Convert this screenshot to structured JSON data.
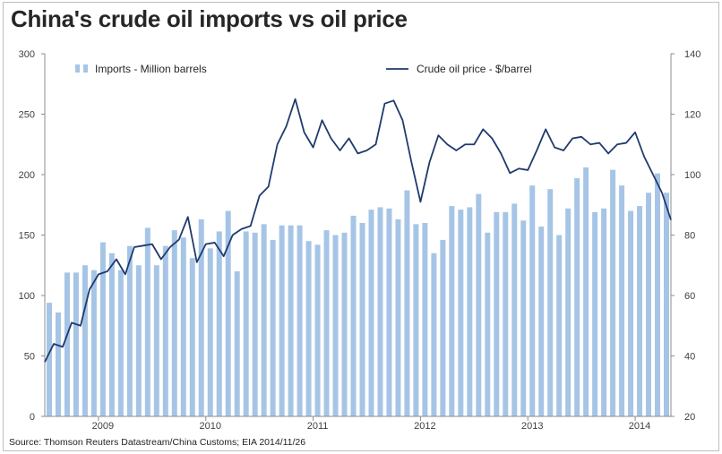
{
  "title": "China's crude oil imports vs oil price",
  "source": "Source: Thomson Reuters Datastream/China Customs; EIA 2014/11/26",
  "colors": {
    "bars": "#a6c5e6",
    "line": "#1f3a6e",
    "axis": "#8c8c8c",
    "text": "#262626"
  },
  "chart_data": {
    "type": "bar",
    "title": "China's crude oil imports vs oil price",
    "grid": false,
    "legend_position": "top",
    "left_axis": {
      "ylim": [
        0,
        300
      ],
      "ticks": [
        "0",
        "50",
        "100",
        "150",
        "200",
        "250",
        "300"
      ]
    },
    "right_axis": {
      "ylim": [
        20,
        140
      ],
      "ticks": [
        "20",
        "40",
        "60",
        "80",
        "100",
        "120",
        "140"
      ]
    },
    "x_labels": [
      "2009",
      "2010",
      "2011",
      "2012",
      "2013",
      "2014"
    ],
    "x_label_month_index": [
      6,
      18,
      30,
      42,
      54,
      66
    ],
    "start": "2008-07",
    "series": [
      {
        "name": "Imports - Million barrels",
        "type": "bar",
        "axis": "left",
        "values": [
          94,
          86,
          119,
          119,
          125,
          121,
          144,
          135,
          121,
          141,
          125,
          156,
          125,
          141,
          154,
          148,
          131,
          163,
          139,
          153,
          170,
          120,
          153,
          152,
          159,
          146,
          158,
          158,
          158,
          145,
          142,
          154,
          150,
          152,
          166,
          160,
          171,
          173,
          172,
          163,
          187,
          159,
          160,
          135,
          146,
          174,
          171,
          173,
          184,
          152,
          169,
          169,
          176,
          162,
          191,
          157,
          188,
          150,
          172,
          197,
          206,
          169,
          172,
          204,
          191,
          170,
          174,
          185,
          201,
          185
        ]
      },
      {
        "name": "Crude oil price - $/barrel",
        "type": "line",
        "axis": "right",
        "values": [
          38,
          44,
          43,
          51,
          50,
          62,
          67,
          68,
          72,
          67,
          76,
          76.5,
          77,
          72,
          76,
          78.5,
          86,
          71,
          77,
          77.5,
          73,
          80,
          82,
          83,
          93,
          96,
          110,
          116,
          125,
          114,
          109,
          118,
          112,
          108,
          112,
          107,
          108,
          110,
          123.5,
          124.5,
          118,
          104,
          91,
          104,
          113,
          110,
          108,
          110,
          110,
          115,
          112,
          107,
          100.5,
          102,
          101.5,
          108,
          115,
          109,
          108,
          112,
          112.5,
          110,
          110.5,
          107,
          110,
          110.5,
          114,
          106,
          100,
          94,
          85
        ]
      }
    ]
  }
}
